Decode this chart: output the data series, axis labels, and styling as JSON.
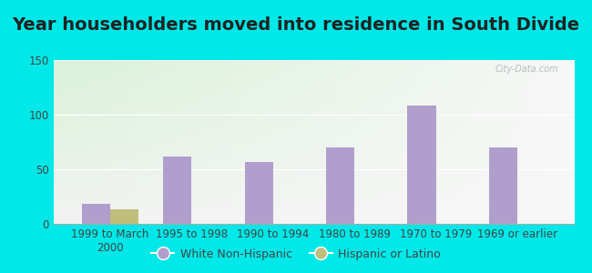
{
  "title": "Year householders moved into residence in South Divide",
  "categories": [
    "1999 to March\n2000",
    "1995 to 1998",
    "1990 to 1994",
    "1980 to 1989",
    "1970 to 1979",
    "1969 or earlier"
  ],
  "white_non_hispanic": [
    18,
    62,
    57,
    70,
    108,
    70
  ],
  "hispanic_or_latino": [
    13,
    0,
    0,
    0,
    0,
    0
  ],
  "bar_color_white": "#b09fcc",
  "bar_color_hispanic": "#bfbe7a",
  "legend_white": "White Non-Hispanic",
  "legend_hispanic": "Hispanic or Latino",
  "ylim": [
    0,
    150
  ],
  "yticks": [
    0,
    50,
    100,
    150
  ],
  "background_outer": "#00e8e8",
  "title_fontsize": 14,
  "tick_fontsize": 8.5,
  "bar_width": 0.35,
  "watermark": "City-Data.com"
}
